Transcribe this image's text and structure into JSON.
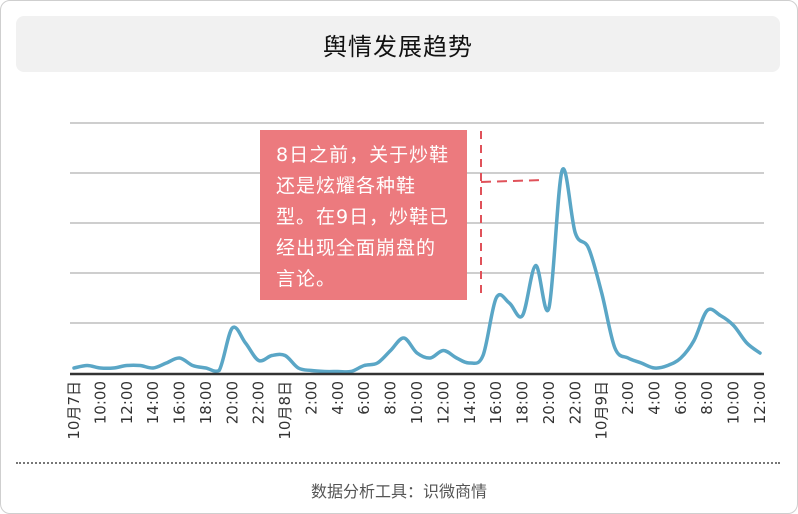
{
  "title": "舆情发展趋势",
  "annotation": "8日之前，关于炒鞋还是炫耀各种鞋型。在9日，炒鞋已经出现全面崩盘的言论。",
  "source": "数据分析工具：识微商情",
  "colors": {
    "line": "#5aa6c6",
    "annotation_bg": "#ec7a7e",
    "annotation_marker": "#e0525a",
    "grid": "#bdbdbd",
    "axis": "#333333"
  },
  "chart_data": {
    "type": "line",
    "title": "舆情发展趋势",
    "xlabel": "",
    "ylabel": "",
    "ylim": [
      0,
      5
    ],
    "grid": true,
    "y_tick_labels_shown": false,
    "x_tick_labels": [
      "10月7日",
      "10:00",
      "12:00",
      "14:00",
      "16:00",
      "18:00",
      "20:00",
      "22:00",
      "10月8日",
      "2:00",
      "4:00",
      "6:00",
      "8:00",
      "10:00",
      "12:00",
      "14:00",
      "16:00",
      "18:00",
      "20:00",
      "22:00",
      "10月9日",
      "2:00",
      "4:00",
      "6:00",
      "8:00",
      "10:00",
      "12:00"
    ],
    "x": [
      "10月7日 8:00",
      "10月7日 9:00",
      "10月7日 10:00",
      "10月7日 11:00",
      "10月7日 12:00",
      "10月7日 13:00",
      "10月7日 14:00",
      "10月7日 15:00",
      "10月7日 16:00",
      "10月7日 17:00",
      "10月7日 18:00",
      "10月7日 19:00",
      "10月7日 20:00",
      "10月7日 21:00",
      "10月7日 22:00",
      "10月7日 23:00",
      "10月8日 0:00",
      "10月8日 1:00",
      "10月8日 2:00",
      "10月8日 3:00",
      "10月8日 4:00",
      "10月8日 5:00",
      "10月8日 6:00",
      "10月8日 7:00",
      "10月8日 8:00",
      "10月8日 9:00",
      "10月8日 10:00",
      "10月8日 11:00",
      "10月8日 12:00",
      "10月8日 13:00",
      "10月8日 14:00",
      "10月8日 15:00",
      "10月8日 16:00",
      "10月8日 17:00",
      "10月8日 18:00",
      "10月8日 19:00",
      "10月8日 20:00",
      "10月8日 21:00",
      "10月8日 22:00",
      "10月8日 23:00",
      "10月9日 0:00",
      "10月9日 1:00",
      "10月9日 2:00",
      "10月9日 3:00",
      "10月9日 4:00",
      "10月9日 5:00",
      "10月9日 6:00",
      "10月9日 7:00",
      "10月9日 8:00",
      "10月9日 9:00",
      "10月9日 10:00",
      "10月9日 11:00",
      "10月9日 12:00"
    ],
    "series": [
      {
        "values": [
          0.1,
          0.15,
          0.1,
          0.1,
          0.15,
          0.15,
          0.1,
          0.2,
          0.3,
          0.15,
          0.1,
          0.05,
          0.9,
          0.6,
          0.25,
          0.35,
          0.35,
          0.1,
          0.05,
          0.03,
          0.03,
          0.03,
          0.15,
          0.2,
          0.45,
          0.7,
          0.4,
          0.3,
          0.45,
          0.3,
          0.2,
          0.35,
          1.5,
          1.4,
          1.15,
          2.15,
          1.3,
          4.05,
          2.8,
          2.5,
          1.6,
          0.5,
          0.3,
          0.2,
          0.1,
          0.15,
          0.3,
          0.65,
          1.25,
          1.15,
          0.95,
          0.6,
          0.4
        ]
      }
    ]
  }
}
